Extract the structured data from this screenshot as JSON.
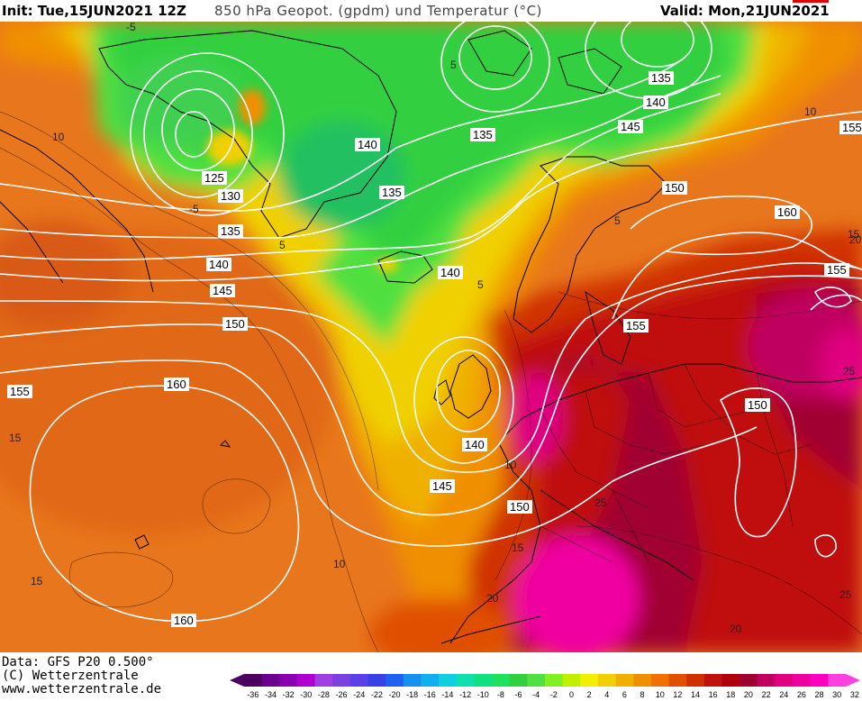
{
  "header": {
    "init": "Init: Tue,15JUN2021 12Z",
    "title": "850 hPa Geopot. (gpdm) und Temperatur (°C)",
    "valid": "Valid: Mon,21JUN2021 00Z"
  },
  "footer": {
    "data_line": "Data: GFS P20 0.500°",
    "copyright": "(C) Wetterzentrale",
    "url": "www.wetterzentrale.de"
  },
  "legend": {
    "ticks": [
      "-36",
      "-34",
      "-32",
      "-30",
      "-28",
      "-26",
      "-24",
      "-22",
      "-20",
      "-18",
      "-16",
      "-14",
      "-12",
      "-10",
      "-8",
      "-6",
      "-4",
      "-2",
      "0",
      "2",
      "4",
      "6",
      "8",
      "10",
      "12",
      "14",
      "16",
      "18",
      "20",
      "22",
      "24",
      "26",
      "28",
      "30",
      "32"
    ],
    "colors": [
      "#4b0060",
      "#6a0090",
      "#8a00b0",
      "#b000d0",
      "#a040e0",
      "#7a40e0",
      "#5a40e8",
      "#3a40e8",
      "#2060f0",
      "#1890f0",
      "#10b0f0",
      "#10d0e0",
      "#10e0b0",
      "#10e080",
      "#20e060",
      "#30d040",
      "#50e040",
      "#80f020",
      "#c0f000",
      "#f0f000",
      "#f0d000",
      "#f0b000",
      "#f09000",
      "#f07000",
      "#e05000",
      "#d03000",
      "#c01010",
      "#b00010",
      "#a00030",
      "#c00060",
      "#e00080",
      "#f000a0",
      "#ff00c0",
      "#ff40e0"
    ]
  },
  "contours": {
    "geopotential_labels": [
      "125",
      "130",
      "135",
      "135",
      "135",
      "140",
      "140",
      "140",
      "140",
      "140",
      "145",
      "145",
      "145",
      "150",
      "150",
      "150",
      "150",
      "155",
      "155",
      "155",
      "155",
      "160",
      "160",
      "160",
      "135",
      "140",
      "145"
    ],
    "temperature_labels": [
      "-5",
      "10",
      "10",
      "-5",
      "5",
      "5",
      "10",
      "15",
      "15",
      "15",
      "20",
      "20",
      "25",
      "25",
      "25",
      "20",
      "10",
      "5",
      "5",
      "15"
    ]
  },
  "colors": {
    "warm_orange": "#e8761c",
    "hot_red": "#c81e1e",
    "very_hot": "#a00030",
    "magenta": "#e01090",
    "cold_green": "#30d040",
    "yellow": "#f0d000",
    "contour_white": "#ffffff"
  }
}
